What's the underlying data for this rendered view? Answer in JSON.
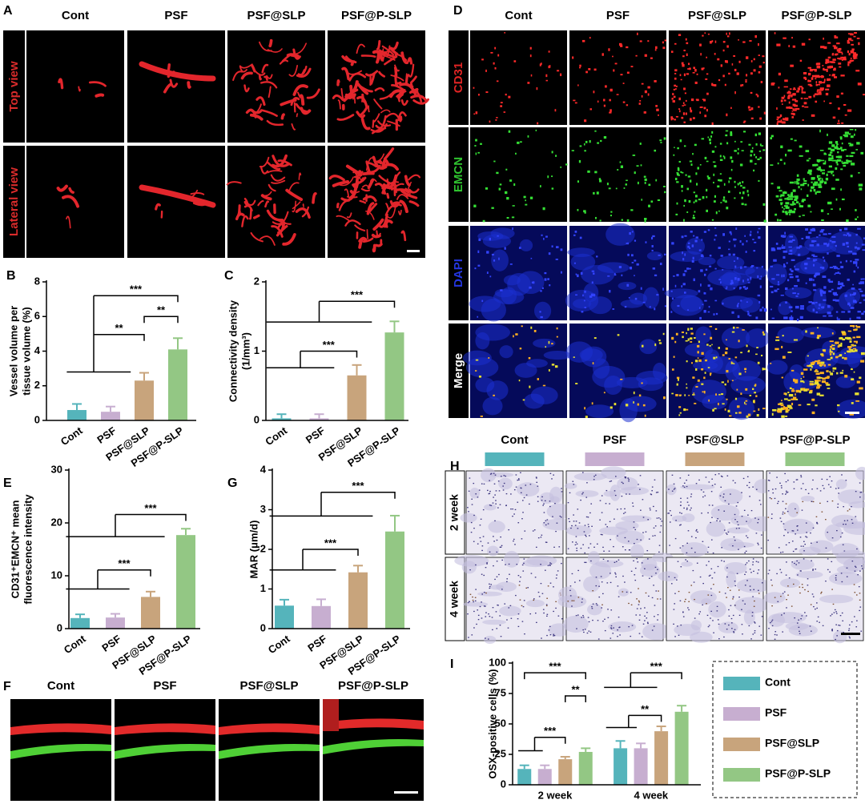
{
  "figure": {
    "A": {
      "label": "A",
      "columns": [
        "Cont",
        "PSF",
        "PSF@SLP",
        "PSF@P-SLP"
      ],
      "rows": [
        "Top view",
        "Lateral view"
      ]
    },
    "D": {
      "label": "D",
      "columns": [
        "Cont",
        "PSF",
        "PSF@SLP",
        "PSF@P-SLP"
      ],
      "rows": [
        "CD31",
        "EMCN",
        "DAPI",
        "Merge"
      ]
    },
    "F": {
      "label": "F",
      "columns": [
        "Cont",
        "PSF",
        "PSF@SLP",
        "PSF@P-SLP"
      ]
    },
    "H": {
      "label": "H",
      "columns": [
        "Cont",
        "PSF",
        "PSF@SLP",
        "PSF@P-SLP"
      ],
      "rows": [
        "2 week",
        "4 week"
      ]
    }
  },
  "chart_data": [
    {
      "type": "bar",
      "panel_label": "B",
      "ylabel": [
        "Vessel volume per",
        "tissue volume (%)"
      ],
      "categories": [
        "Cont",
        "PSF",
        "PSF@SLP",
        "PSF@P-SLP"
      ],
      "values": [
        0.6,
        0.5,
        2.3,
        4.1
      ],
      "errors": [
        0.35,
        0.3,
        0.45,
        0.65
      ],
      "colors": [
        "#55b4bb",
        "#c7aed0",
        "#c8a47c",
        "#93c784"
      ],
      "ylim": [
        0,
        8
      ],
      "yticks": [
        0,
        2,
        4,
        6,
        8
      ],
      "annotations": [
        "***",
        "**",
        "**"
      ]
    },
    {
      "type": "bar",
      "panel_label": "C",
      "ylabel": [
        "Connectivity density",
        "(1/mm³)"
      ],
      "categories": [
        "Cont",
        "PSF",
        "PSF@SLP",
        "PSF@P-SLP"
      ],
      "values": [
        0.03,
        0.03,
        0.65,
        1.27
      ],
      "errors": [
        0.06,
        0.06,
        0.15,
        0.16
      ],
      "colors": [
        "#55b4bb",
        "#c7aed0",
        "#c8a47c",
        "#93c784"
      ],
      "ylim": [
        0,
        2
      ],
      "yticks": [
        0,
        1,
        2
      ],
      "annotations": [
        "***",
        "***"
      ]
    },
    {
      "type": "bar",
      "panel_label": "E",
      "ylabel": [
        "CD31⁺EMCN⁺ mean",
        "fluorescence intensity"
      ],
      "categories": [
        "Cont",
        "PSF",
        "PSF@SLP",
        "PSF@P-SLP"
      ],
      "values": [
        2,
        2.1,
        6,
        17.7
      ],
      "errors": [
        0.7,
        0.7,
        1,
        1.2
      ],
      "colors": [
        "#55b4bb",
        "#c7aed0",
        "#c8a47c",
        "#93c784"
      ],
      "ylim": [
        0,
        30
      ],
      "yticks": [
        0,
        10,
        20,
        30
      ],
      "annotations": [
        "***",
        "***"
      ]
    },
    {
      "type": "bar",
      "panel_label": "G",
      "ylabel": [
        "MAR (μm/d)"
      ],
      "categories": [
        "Cont",
        "PSF",
        "PSF@SLP",
        "PSF@P-SLP"
      ],
      "values": [
        0.58,
        0.57,
        1.42,
        2.45
      ],
      "errors": [
        0.15,
        0.17,
        0.17,
        0.4
      ],
      "colors": [
        "#55b4bb",
        "#c7aed0",
        "#c8a47c",
        "#93c784"
      ],
      "ylim": [
        0,
        4
      ],
      "yticks": [
        0,
        1,
        2,
        3,
        4
      ],
      "annotations": [
        "***",
        "***"
      ]
    },
    {
      "type": "bar",
      "panel_label": "I",
      "ylabel": [
        "OSX-positive cells (%)"
      ],
      "categories": [
        "2 week",
        "4 week"
      ],
      "series": [
        {
          "name": "Cont",
          "color": "#55b4bb",
          "values": [
            13,
            30
          ],
          "errors": [
            3,
            6
          ]
        },
        {
          "name": "PSF",
          "color": "#c7aed0",
          "values": [
            13,
            30
          ],
          "errors": [
            3,
            4
          ]
        },
        {
          "name": "PSF@SLP",
          "color": "#c8a47c",
          "values": [
            21,
            44
          ],
          "errors": [
            2,
            4
          ]
        },
        {
          "name": "PSF@P-SLP",
          "color": "#93c784",
          "values": [
            27,
            60
          ],
          "errors": [
            3,
            5
          ]
        }
      ],
      "ylim": [
        0,
        100
      ],
      "yticks": [
        0,
        25,
        50,
        75,
        100
      ],
      "annotations": [
        "***",
        "**",
        "***",
        "***",
        "**"
      ]
    }
  ]
}
